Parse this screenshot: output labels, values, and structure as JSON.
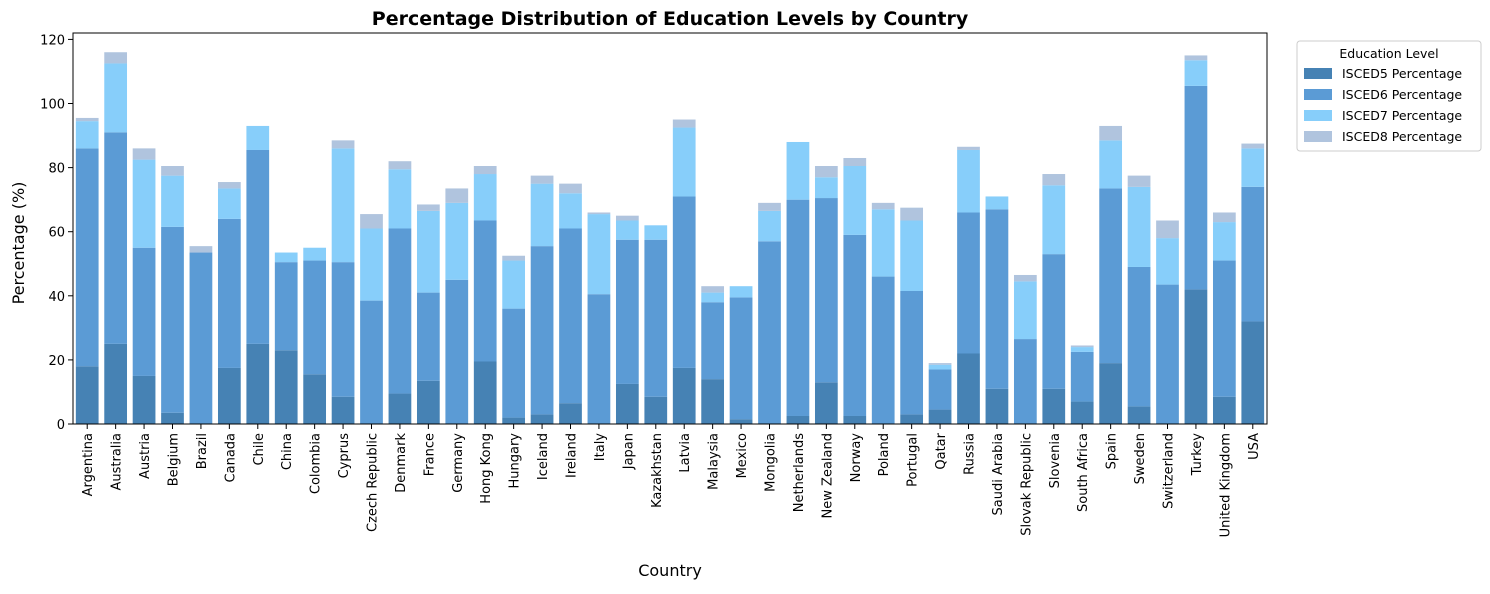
{
  "chart_data": {
    "type": "bar",
    "stacked": true,
    "title": "Percentage Distribution of Education Levels by Country",
    "xlabel": "Country",
    "ylabel": "Percentage (%)",
    "ylim": [
      0,
      122
    ],
    "yticks": [
      0,
      20,
      40,
      60,
      80,
      100,
      120
    ],
    "grid": false,
    "legend_title": "Education Level",
    "legend_position": "outside-top-right",
    "categories": [
      "Argentina",
      "Australia",
      "Austria",
      "Belgium",
      "Brazil",
      "Canada",
      "Chile",
      "China",
      "Colombia",
      "Cyprus",
      "Czech Republic",
      "Denmark",
      "France",
      "Germany",
      "Hong Kong",
      "Hungary",
      "Iceland",
      "Ireland",
      "Italy",
      "Japan",
      "Kazakhstan",
      "Latvia",
      "Malaysia",
      "Mexico",
      "Mongolia",
      "Netherlands",
      "New Zealand",
      "Norway",
      "Poland",
      "Portugal",
      "Qatar",
      "Russia",
      "Saudi Arabia",
      "Slovak Republic",
      "Slovenia",
      "South Africa",
      "Spain",
      "Sweden",
      "Switzerland",
      "Turkey",
      "United Kingdom",
      "USA"
    ],
    "series": [
      {
        "name": "ISCED5 Percentage",
        "color": "#4682b4",
        "values": [
          18,
          25,
          15,
          3.5,
          0,
          17.5,
          25,
          23,
          15.5,
          8.5,
          0,
          9.5,
          13.5,
          0,
          19.5,
          2,
          3,
          6.5,
          0,
          12.5,
          8.5,
          17.5,
          14,
          1.5,
          0,
          2.5,
          13,
          2.5,
          0,
          3,
          4.5,
          22,
          11,
          0,
          11,
          7,
          19,
          5.5,
          0,
          42,
          8.5,
          32
        ]
      },
      {
        "name": "ISCED6 Percentage",
        "color": "#5b9bd5",
        "values": [
          68,
          66,
          40,
          58,
          53.5,
          46.5,
          60.5,
          27.5,
          35.5,
          42,
          38.5,
          51.5,
          27.5,
          45,
          44,
          34,
          52.5,
          54.5,
          40.5,
          45,
          49,
          53.5,
          24,
          38,
          57,
          67.5,
          57.5,
          56.5,
          46,
          38.5,
          12.5,
          44,
          56,
          26.5,
          42,
          15.5,
          54.5,
          43.5,
          43.5,
          63.5,
          42.5,
          42
        ]
      },
      {
        "name": "ISCED7 Percentage",
        "color": "#87cefa",
        "values": [
          8.5,
          21.5,
          27.5,
          16,
          0,
          9.5,
          7.5,
          3,
          4,
          35.5,
          22.5,
          18.5,
          25.5,
          24,
          14.5,
          15,
          19.5,
          11,
          25,
          6,
          4.5,
          21.5,
          3,
          3.5,
          9.5,
          18,
          6.5,
          21.5,
          21,
          22,
          1.5,
          19.5,
          4,
          18,
          21.5,
          1.5,
          15,
          25,
          14.5,
          8,
          12,
          12
        ]
      },
      {
        "name": "ISCED8 Percentage",
        "color": "#b0c4de",
        "values": [
          1,
          3.5,
          3.5,
          3,
          2,
          2,
          0,
          0,
          0,
          2.5,
          4.5,
          2.5,
          2,
          4.5,
          2.5,
          1.5,
          2.5,
          3,
          0.5,
          1.5,
          0,
          2.5,
          2,
          0,
          2.5,
          0,
          3.5,
          2.5,
          2,
          4,
          0.5,
          1,
          0,
          2,
          3.5,
          0.5,
          4.5,
          3.5,
          5.5,
          1.5,
          3,
          1.5
        ]
      }
    ]
  }
}
